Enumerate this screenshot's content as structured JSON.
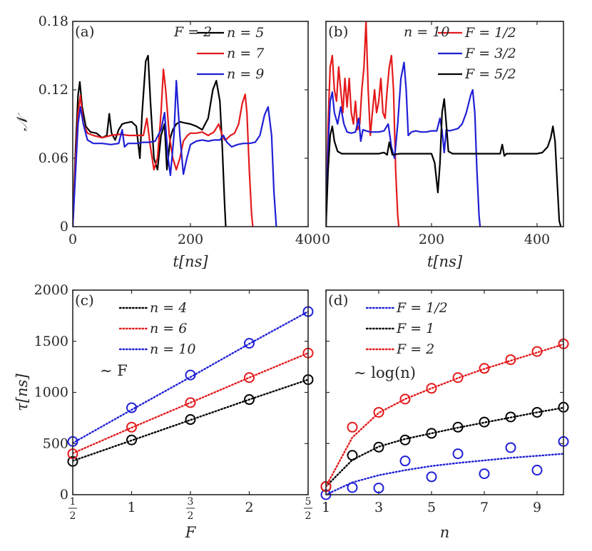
{
  "chart_data": [
    {
      "panel": "(a)",
      "type": "line",
      "annotation": "F = 2",
      "xlabel": "t[ns]",
      "ylabel": "𝒩",
      "xlim": [
        0,
        400
      ],
      "ylim": [
        0,
        0.18
      ],
      "xticks": [
        "0",
        "200",
        "400"
      ],
      "yticks": [
        "0",
        "0.06",
        "0.12",
        "0.18"
      ],
      "grid": false,
      "legend_position": "top-right",
      "series": [
        {
          "name": "n = 5",
          "color": "#000000",
          "x": [
            0,
            5,
            9,
            12,
            16,
            22,
            30,
            40,
            50,
            58,
            62,
            66,
            72,
            78,
            84,
            90,
            100,
            108,
            114,
            118,
            124,
            128,
            132,
            138,
            144,
            150,
            156,
            160,
            166,
            170,
            176,
            182,
            190,
            200,
            210,
            220,
            230,
            238,
            244,
            250,
            254,
            258,
            260
          ],
          "y": [
            0,
            0.07,
            0.115,
            0.127,
            0.105,
            0.088,
            0.083,
            0.082,
            0.078,
            0.08,
            0.099,
            0.082,
            0.076,
            0.085,
            0.09,
            0.091,
            0.092,
            0.088,
            0.06,
            0.1,
            0.145,
            0.15,
            0.11,
            0.06,
            0.05,
            0.08,
            0.09,
            0.05,
            0.078,
            0.085,
            0.09,
            0.092,
            0.091,
            0.09,
            0.088,
            0.085,
            0.095,
            0.12,
            0.128,
            0.11,
            0.07,
            0.02,
            0
          ]
        },
        {
          "name": "n = 7",
          "color": "#e41a1c",
          "x": [
            0,
            5,
            9,
            13,
            18,
            25,
            35,
            50,
            65,
            80,
            95,
            110,
            120,
            126,
            132,
            138,
            144,
            150,
            154,
            158,
            164,
            170,
            176,
            182,
            188,
            195,
            200,
            210,
            220,
            230,
            240,
            248,
            254,
            258,
            262,
            268,
            275,
            282,
            288,
            293,
            296,
            300,
            304,
            306
          ],
          "y": [
            0,
            0.06,
            0.1,
            0.115,
            0.09,
            0.082,
            0.08,
            0.078,
            0.08,
            0.081,
            0.08,
            0.08,
            0.08,
            0.095,
            0.07,
            0.05,
            0.06,
            0.1,
            0.138,
            0.12,
            0.08,
            0.06,
            0.05,
            0.06,
            0.075,
            0.08,
            0.082,
            0.082,
            0.083,
            0.08,
            0.083,
            0.09,
            0.08,
            0.076,
            0.077,
            0.08,
            0.082,
            0.09,
            0.108,
            0.116,
            0.1,
            0.05,
            0.01,
            0
          ]
        },
        {
          "name": "n = 9",
          "color": "#1f1fd6",
          "x": [
            0,
            5,
            9,
            13,
            18,
            25,
            35,
            50,
            65,
            78,
            84,
            88,
            94,
            100,
            110,
            120,
            130,
            140,
            150,
            156,
            162,
            166,
            172,
            176,
            182,
            188,
            194,
            200,
            210,
            220,
            230,
            240,
            250,
            256,
            262,
            270,
            280,
            290,
            300,
            310,
            318,
            326,
            332,
            338,
            342,
            346
          ],
          "y": [
            0,
            0.05,
            0.09,
            0.105,
            0.09,
            0.076,
            0.073,
            0.073,
            0.072,
            0.073,
            0.085,
            0.07,
            0.073,
            0.073,
            0.073,
            0.074,
            0.074,
            0.075,
            0.085,
            0.1,
            0.06,
            0.045,
            0.08,
            0.128,
            0.08,
            0.046,
            0.06,
            0.072,
            0.075,
            0.076,
            0.075,
            0.076,
            0.076,
            0.08,
            0.074,
            0.07,
            0.072,
            0.073,
            0.073,
            0.074,
            0.08,
            0.098,
            0.105,
            0.08,
            0.03,
            0
          ]
        }
      ]
    },
    {
      "panel": "(b)",
      "type": "line",
      "annotation": "n = 10",
      "xlabel": "t[ns]",
      "xlim": [
        0,
        450
      ],
      "ylim": [
        0,
        0.18
      ],
      "xticks": [
        "0",
        "200",
        "400"
      ],
      "grid": false,
      "legend_position": "top-right",
      "series": [
        {
          "name": "F = 1/2",
          "color": "#e41a1c",
          "x": [
            0,
            4,
            8,
            12,
            16,
            20,
            24,
            28,
            32,
            36,
            40,
            44,
            48,
            52,
            56,
            60,
            64,
            68,
            72,
            76,
            80,
            84,
            88,
            92,
            96,
            100,
            104,
            108,
            112,
            116,
            120,
            124,
            128,
            132,
            136,
            138
          ],
          "y": [
            0,
            0.09,
            0.14,
            0.15,
            0.12,
            0.11,
            0.14,
            0.12,
            0.1,
            0.13,
            0.105,
            0.13,
            0.1,
            0.09,
            0.11,
            0.085,
            0.09,
            0.12,
            0.14,
            0.18,
            0.12,
            0.08,
            0.1,
            0.12,
            0.1,
            0.11,
            0.13,
            0.1,
            0.095,
            0.12,
            0.14,
            0.15,
            0.12,
            0.05,
            0.01,
            0
          ]
        },
        {
          "name": "F = 3/2",
          "color": "#1f1fd6",
          "x": [
            0,
            4,
            8,
            12,
            16,
            22,
            28,
            34,
            40,
            48,
            56,
            62,
            66,
            70,
            76,
            84,
            92,
            100,
            110,
            118,
            124,
            130,
            136,
            142,
            148,
            152,
            156,
            162,
            170,
            180,
            190,
            200,
            210,
            216,
            220,
            224,
            228,
            234,
            242,
            250,
            258,
            266,
            274,
            278,
            282,
            286,
            290,
            292
          ],
          "y": [
            0,
            0.07,
            0.11,
            0.118,
            0.1,
            0.09,
            0.105,
            0.09,
            0.083,
            0.082,
            0.083,
            0.095,
            0.075,
            0.085,
            0.084,
            0.083,
            0.083,
            0.083,
            0.084,
            0.09,
            0.07,
            0.06,
            0.09,
            0.13,
            0.144,
            0.12,
            0.08,
            0.083,
            0.084,
            0.083,
            0.083,
            0.084,
            0.084,
            0.095,
            0.084,
            0.065,
            0.085,
            0.084,
            0.085,
            0.086,
            0.09,
            0.1,
            0.115,
            0.12,
            0.1,
            0.05,
            0.01,
            0
          ]
        },
        {
          "name": "F = 5/2",
          "color": "#000000",
          "x": [
            0,
            4,
            8,
            12,
            16,
            22,
            30,
            40,
            60,
            80,
            100,
            110,
            116,
            120,
            126,
            140,
            160,
            180,
            200,
            206,
            212,
            216,
            220,
            224,
            228,
            232,
            240,
            250,
            270,
            300,
            330,
            334,
            338,
            342,
            360,
            380,
            400,
            410,
            420,
            426,
            430,
            434,
            438,
            442,
            445
          ],
          "y": [
            0,
            0.05,
            0.08,
            0.088,
            0.075,
            0.066,
            0.064,
            0.064,
            0.064,
            0.064,
            0.064,
            0.065,
            0.063,
            0.074,
            0.063,
            0.064,
            0.064,
            0.064,
            0.064,
            0.056,
            0.03,
            0.055,
            0.1,
            0.112,
            0.09,
            0.066,
            0.064,
            0.064,
            0.064,
            0.064,
            0.064,
            0.072,
            0.062,
            0.064,
            0.064,
            0.064,
            0.064,
            0.065,
            0.07,
            0.078,
            0.088,
            0.075,
            0.04,
            0.005,
            0
          ]
        }
      ]
    },
    {
      "panel": "(c)",
      "type": "scatter",
      "annotation": "∼ F",
      "xlabel": "F",
      "ylabel": "τ[ns]",
      "xlim": [
        0.5,
        2.5
      ],
      "ylim": [
        0,
        2000
      ],
      "xticks": [
        "1/2",
        "1",
        "3/2",
        "2",
        "5/2"
      ],
      "yticks": [
        "0",
        "500",
        "1000",
        "1500",
        "2000"
      ],
      "grid": false,
      "legend_position": "top-right",
      "x": [
        0.5,
        1,
        1.5,
        2,
        2.5
      ],
      "series": [
        {
          "name": "n = 4",
          "color": "#000000",
          "values": [
            325,
            535,
            735,
            930,
            1125
          ],
          "fit": [
            330,
            530,
            730,
            930,
            1125
          ]
        },
        {
          "name": "n = 6",
          "color": "#e41a1c",
          "values": [
            400,
            660,
            900,
            1145,
            1385
          ],
          "fit": [
            405,
            655,
            900,
            1145,
            1385
          ]
        },
        {
          "name": "n = 10",
          "color": "#1f1fd6",
          "values": [
            520,
            850,
            1170,
            1480,
            1790
          ],
          "fit": [
            505,
            830,
            1150,
            1475,
            1790
          ]
        }
      ]
    },
    {
      "panel": "(d)",
      "type": "scatter",
      "annotation": "∼ log(n)",
      "xlabel": "n",
      "xlim": [
        1,
        10
      ],
      "ylim": [
        0,
        2000
      ],
      "xticks": [
        "1",
        "3",
        "5",
        "7",
        "9"
      ],
      "grid": false,
      "legend_position": "top-left",
      "x": [
        1,
        2,
        3,
        4,
        5,
        6,
        7,
        8,
        9,
        10
      ],
      "series": [
        {
          "name": "F = 1/2",
          "color": "#1f1fd6",
          "values": [
            0,
            70,
            65,
            330,
            175,
            400,
            205,
            460,
            240,
            520
          ],
          "fit": [
            0,
            120,
            190,
            240,
            280,
            310,
            335,
            360,
            380,
            400
          ]
        },
        {
          "name": "F = 1",
          "color": "#000000",
          "values": [
            80,
            385,
            465,
            535,
            600,
            660,
            710,
            760,
            805,
            855
          ],
          "fit": [
            80,
            340,
            470,
            545,
            600,
            655,
            705,
            755,
            805,
            850
          ]
        },
        {
          "name": "F = 2",
          "color": "#e41a1c",
          "values": [
            80,
            660,
            805,
            935,
            1040,
            1145,
            1235,
            1320,
            1400,
            1475
          ],
          "fit": [
            80,
            560,
            800,
            935,
            1040,
            1140,
            1230,
            1310,
            1390,
            1470
          ]
        }
      ]
    }
  ]
}
